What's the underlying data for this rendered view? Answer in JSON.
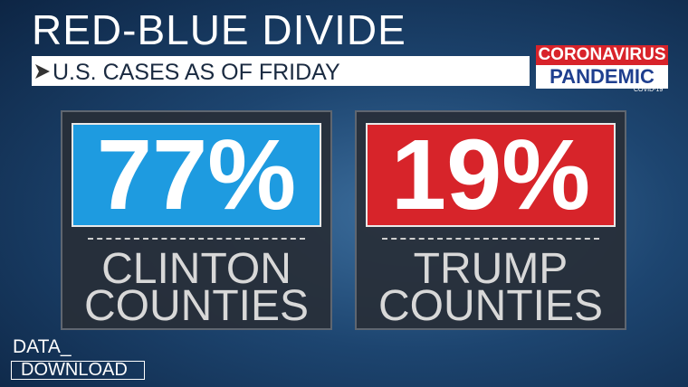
{
  "header": {
    "title": "RED-BLUE DIVIDE",
    "subtitle": "U.S. CASES AS OF FRIDAY"
  },
  "logo": {
    "line1": "CORONAVIRUS",
    "line2": "PANDEMIC",
    "tag": "COVID-19"
  },
  "panels": [
    {
      "value": "77%",
      "label": [
        "CLINTON",
        "COUNTIES"
      ]
    },
    {
      "value": "19%",
      "label": [
        "TRUMP",
        "COUNTIES"
      ]
    }
  ],
  "footer": {
    "line1": "DATA_",
    "line2": "DOWNLOAD"
  }
}
